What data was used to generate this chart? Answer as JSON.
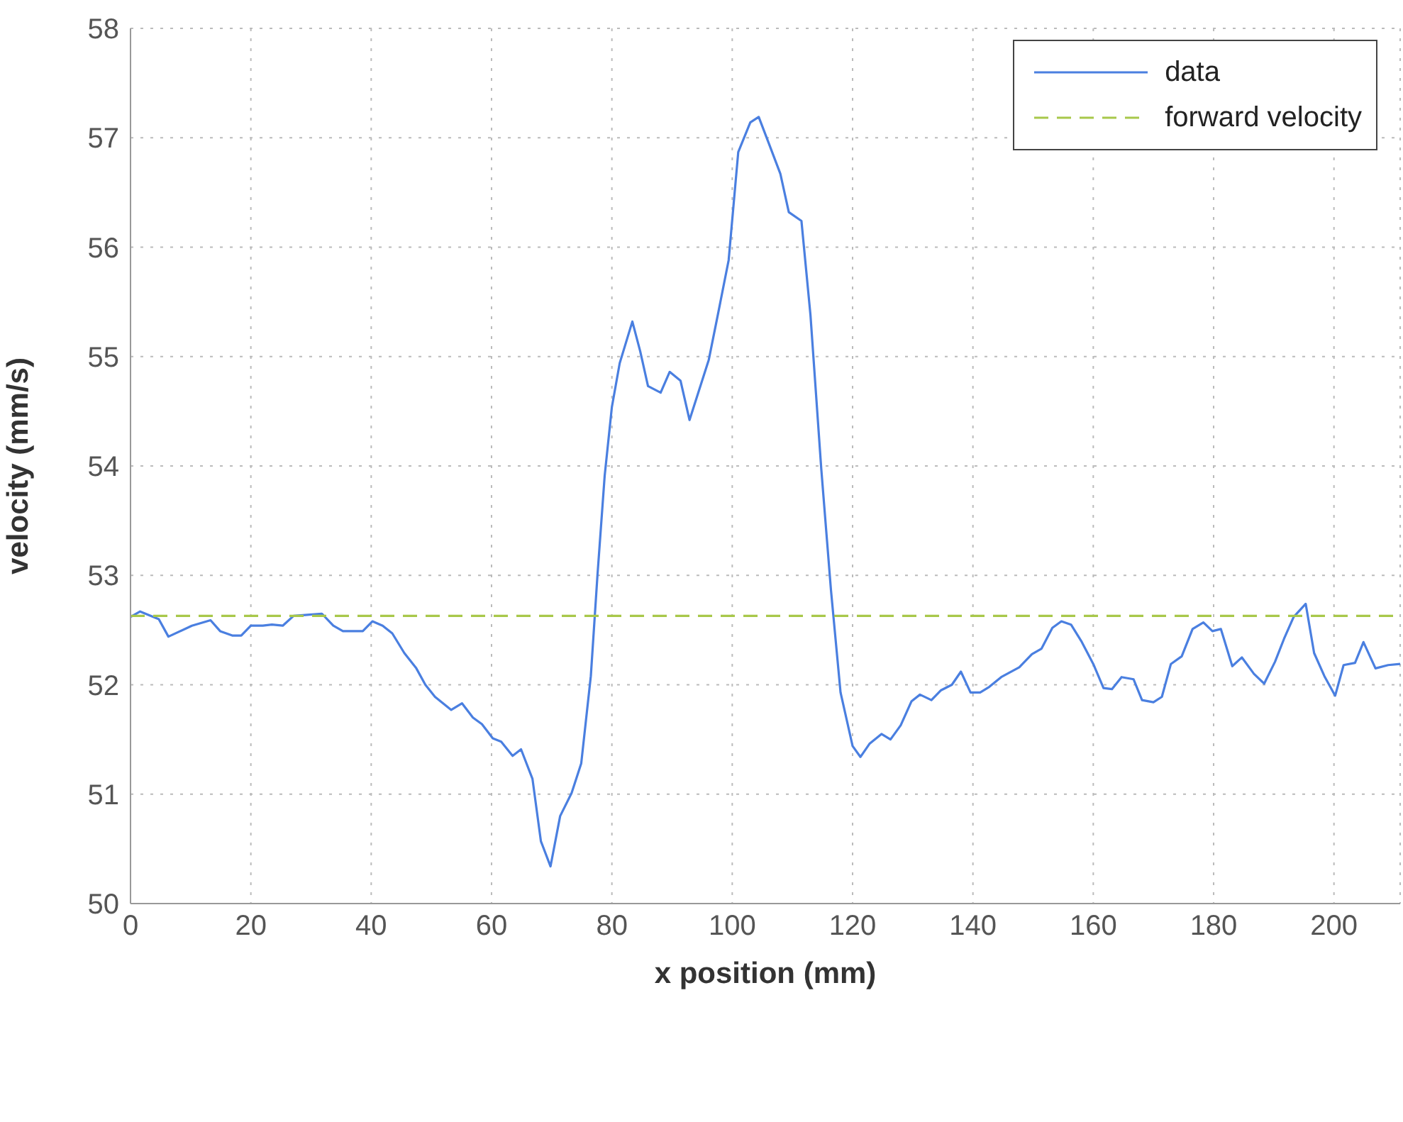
{
  "chart_data": {
    "type": "line",
    "xlabel": "x position (mm)",
    "ylabel": "velocity (mm/s)",
    "xlim": [
      0,
      211
    ],
    "xticks": [
      0,
      20,
      40,
      60,
      80,
      100,
      120,
      140,
      160,
      180,
      200
    ],
    "ylim": [
      50,
      58
    ],
    "yticks": [
      50,
      51,
      52,
      53,
      54,
      55,
      56,
      57,
      58
    ],
    "grid": true,
    "legend": "top right",
    "marker": "none",
    "series": [
      {
        "name": "data",
        "color": "#4a7fe0",
        "line_style": "solid",
        "x": [
          0,
          1.6,
          4.7,
          6.3,
          10.2,
          13.3,
          14.9,
          16.9,
          18.4,
          20,
          22,
          23.5,
          25.3,
          27.1,
          29.4,
          31.8,
          33.7,
          35.3,
          38.6,
          40.2,
          41.9,
          43.5,
          45.5,
          47.5,
          49,
          50.6,
          53.3,
          55.1,
          56.9,
          58.4,
          60.2,
          61.6,
          63.5,
          64.9,
          66.8,
          68.2,
          69.8,
          71.4,
          73.3,
          74.9,
          76.5,
          77.6,
          78.8,
          80,
          81.3,
          83.4,
          84.7,
          86,
          88.1,
          89.6,
          91.4,
          92.9,
          96.1,
          97.6,
          99.4,
          101,
          103,
          104.4,
          106,
          108,
          109.4,
          111.5,
          113,
          114.8,
          116.4,
          118,
          120,
          121.3,
          122.8,
          124.8,
          126.3,
          128,
          129.8,
          131.2,
          133.1,
          134.7,
          136.5,
          138,
          139.6,
          141.2,
          142.7,
          144.7,
          147.7,
          149.8,
          151.4,
          153.2,
          154.7,
          156.3,
          158,
          160,
          161.7,
          163.1,
          164.7,
          166.7,
          168.1,
          170,
          171.4,
          172.9,
          174.7,
          176.5,
          178.3,
          179.8,
          181.2,
          183.1,
          184.7,
          186.7,
          188.4,
          190.2,
          191.7,
          193.3,
          195.3,
          196.7,
          198.4,
          200.2,
          201.6,
          203.5,
          204.9,
          206.9,
          209,
          211
        ],
        "values": [
          52.62,
          52.67,
          52.6,
          52.44,
          52.54,
          52.59,
          52.49,
          52.45,
          52.45,
          52.54,
          52.54,
          52.55,
          52.54,
          52.63,
          52.64,
          52.65,
          52.54,
          52.49,
          52.49,
          52.58,
          52.54,
          52.47,
          52.29,
          52.15,
          52.0,
          51.89,
          51.77,
          51.83,
          51.7,
          51.64,
          51.51,
          51.48,
          51.35,
          51.41,
          51.14,
          50.57,
          50.34,
          50.8,
          51.01,
          51.28,
          52.08,
          53.0,
          53.91,
          54.54,
          54.94,
          55.32,
          55.05,
          54.73,
          54.67,
          54.86,
          54.78,
          54.42,
          54.97,
          55.38,
          55.88,
          56.87,
          57.14,
          57.19,
          56.96,
          56.67,
          56.32,
          56.24,
          55.38,
          53.97,
          52.87,
          51.93,
          51.44,
          51.34,
          51.46,
          51.55,
          51.5,
          51.63,
          51.85,
          51.91,
          51.86,
          51.95,
          52.0,
          52.12,
          51.93,
          51.93,
          51.98,
          52.07,
          52.16,
          52.28,
          52.33,
          52.52,
          52.58,
          52.55,
          52.4,
          52.19,
          51.97,
          51.96,
          52.07,
          52.05,
          51.86,
          51.84,
          51.89,
          52.19,
          52.26,
          52.51,
          52.57,
          52.49,
          52.51,
          52.17,
          52.25,
          52.1,
          52.01,
          52.21,
          52.42,
          52.62,
          52.74,
          52.29,
          52.08,
          51.9,
          52.18,
          52.2,
          52.39,
          52.15,
          52.18,
          52.19
        ]
      },
      {
        "name": "forward velocity",
        "color": "#a8c84a",
        "line_style": "dashed",
        "x": [
          0,
          211
        ],
        "values": [
          52.63,
          52.63
        ]
      }
    ]
  }
}
